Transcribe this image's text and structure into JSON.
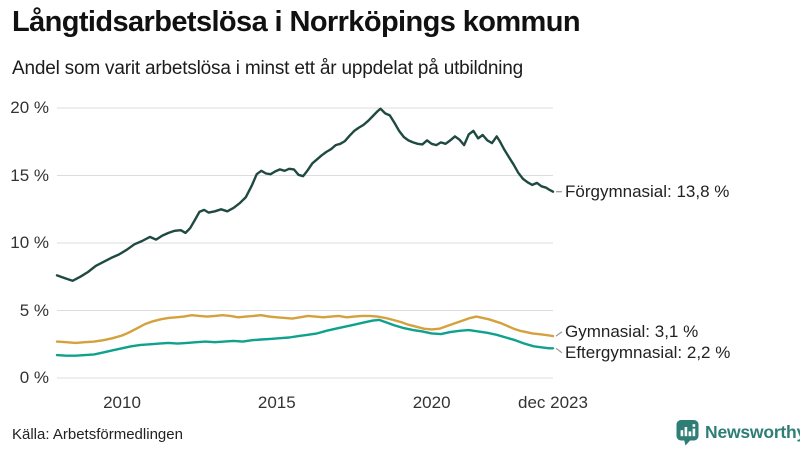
{
  "header": {
    "title": "Långtidsarbetslösa i Norrköpings kommun",
    "subtitle": "Andel som varit arbetslösa i minst ett år uppdelat på utbildning"
  },
  "footer": {
    "source": "Källa: Arbetsförmedlingen",
    "brand_name": "Newsworthy",
    "brand_color": "#2e7e76",
    "brand_icon": "newsworthy-bar-chart-bubble-icon"
  },
  "colors": {
    "grid": "#dcdcdc",
    "axis_text": "#333333",
    "leader_line": "#999999",
    "background": "#ffffff"
  },
  "chart_data": {
    "type": "line",
    "title": "Långtidsarbetslösa i Norrköpings kommun",
    "subtitle": "Andel som varit arbetslösa i minst ett år uppdelat på utbildning",
    "unit": "%",
    "grid": true,
    "legend_position": "right-of-line-ends",
    "xlim": [
      2007.9,
      2023.92
    ],
    "ylim": [
      0,
      20
    ],
    "y_ticks": [
      {
        "value": 0,
        "label": "0 %"
      },
      {
        "value": 5,
        "label": "5 %"
      },
      {
        "value": 10,
        "label": "10 %"
      },
      {
        "value": 15,
        "label": "15 %"
      },
      {
        "value": 20,
        "label": "20 %"
      }
    ],
    "x_ticks": [
      {
        "value": 2010,
        "label": "2010"
      },
      {
        "value": 2015,
        "label": "2015"
      },
      {
        "value": 2020,
        "label": "2020"
      },
      {
        "value": 2023.92,
        "label": "dec 2023"
      }
    ],
    "series": [
      {
        "name": "Förgymnasial",
        "end_label": "Förgymnasial: 13,8 %",
        "end_value_text": "13,8 %",
        "color": "#1f4a41",
        "points": [
          [
            2007.9,
            7.6
          ],
          [
            2008.15,
            7.4
          ],
          [
            2008.4,
            7.2
          ],
          [
            2008.65,
            7.5
          ],
          [
            2008.9,
            7.85
          ],
          [
            2009.15,
            8.3
          ],
          [
            2009.4,
            8.6
          ],
          [
            2009.65,
            8.9
          ],
          [
            2009.9,
            9.15
          ],
          [
            2010.15,
            9.5
          ],
          [
            2010.4,
            9.9
          ],
          [
            2010.65,
            10.15
          ],
          [
            2010.9,
            10.45
          ],
          [
            2011.1,
            10.25
          ],
          [
            2011.3,
            10.55
          ],
          [
            2011.5,
            10.75
          ],
          [
            2011.7,
            10.9
          ],
          [
            2011.9,
            10.95
          ],
          [
            2012.05,
            10.75
          ],
          [
            2012.2,
            11.1
          ],
          [
            2012.35,
            11.7
          ],
          [
            2012.5,
            12.3
          ],
          [
            2012.65,
            12.45
          ],
          [
            2012.8,
            12.25
          ],
          [
            2013.0,
            12.35
          ],
          [
            2013.2,
            12.5
          ],
          [
            2013.4,
            12.35
          ],
          [
            2013.6,
            12.6
          ],
          [
            2013.8,
            12.95
          ],
          [
            2014.0,
            13.4
          ],
          [
            2014.2,
            14.3
          ],
          [
            2014.35,
            15.1
          ],
          [
            2014.5,
            15.35
          ],
          [
            2014.65,
            15.15
          ],
          [
            2014.8,
            15.1
          ],
          [
            2014.95,
            15.3
          ],
          [
            2015.1,
            15.45
          ],
          [
            2015.25,
            15.35
          ],
          [
            2015.4,
            15.5
          ],
          [
            2015.55,
            15.45
          ],
          [
            2015.7,
            15.05
          ],
          [
            2015.85,
            14.95
          ],
          [
            2016.0,
            15.4
          ],
          [
            2016.15,
            15.9
          ],
          [
            2016.3,
            16.2
          ],
          [
            2016.45,
            16.5
          ],
          [
            2016.6,
            16.75
          ],
          [
            2016.75,
            16.95
          ],
          [
            2016.9,
            17.25
          ],
          [
            2017.05,
            17.35
          ],
          [
            2017.2,
            17.55
          ],
          [
            2017.35,
            17.95
          ],
          [
            2017.5,
            18.3
          ],
          [
            2017.65,
            18.55
          ],
          [
            2017.8,
            18.75
          ],
          [
            2017.95,
            19.05
          ],
          [
            2018.1,
            19.4
          ],
          [
            2018.25,
            19.75
          ],
          [
            2018.35,
            19.95
          ],
          [
            2018.5,
            19.6
          ],
          [
            2018.65,
            19.45
          ],
          [
            2018.8,
            18.9
          ],
          [
            2018.95,
            18.3
          ],
          [
            2019.1,
            17.85
          ],
          [
            2019.25,
            17.6
          ],
          [
            2019.4,
            17.45
          ],
          [
            2019.55,
            17.35
          ],
          [
            2019.7,
            17.3
          ],
          [
            2019.85,
            17.6
          ],
          [
            2020.0,
            17.35
          ],
          [
            2020.15,
            17.25
          ],
          [
            2020.3,
            17.45
          ],
          [
            2020.45,
            17.35
          ],
          [
            2020.6,
            17.6
          ],
          [
            2020.75,
            17.9
          ],
          [
            2020.9,
            17.65
          ],
          [
            2021.05,
            17.25
          ],
          [
            2021.2,
            18.05
          ],
          [
            2021.35,
            18.3
          ],
          [
            2021.5,
            17.75
          ],
          [
            2021.65,
            18.0
          ],
          [
            2021.8,
            17.6
          ],
          [
            2021.95,
            17.4
          ],
          [
            2022.1,
            17.9
          ],
          [
            2022.2,
            17.55
          ],
          [
            2022.35,
            16.9
          ],
          [
            2022.5,
            16.35
          ],
          [
            2022.65,
            15.8
          ],
          [
            2022.8,
            15.2
          ],
          [
            2022.95,
            14.75
          ],
          [
            2023.1,
            14.5
          ],
          [
            2023.25,
            14.3
          ],
          [
            2023.4,
            14.45
          ],
          [
            2023.55,
            14.2
          ],
          [
            2023.7,
            14.1
          ],
          [
            2023.8,
            13.95
          ],
          [
            2023.92,
            13.8
          ]
        ]
      },
      {
        "name": "Gymnasial",
        "end_label": "Gymnasial:  3,1 %",
        "end_value_text": "3,1 %",
        "color": "#d4a13c",
        "points": [
          [
            2007.9,
            2.7
          ],
          [
            2008.2,
            2.65
          ],
          [
            2008.5,
            2.6
          ],
          [
            2008.8,
            2.65
          ],
          [
            2009.1,
            2.7
          ],
          [
            2009.4,
            2.8
          ],
          [
            2009.7,
            2.95
          ],
          [
            2010.0,
            3.15
          ],
          [
            2010.25,
            3.4
          ],
          [
            2010.5,
            3.7
          ],
          [
            2010.75,
            4.0
          ],
          [
            2011.0,
            4.2
          ],
          [
            2011.25,
            4.35
          ],
          [
            2011.5,
            4.45
          ],
          [
            2011.75,
            4.5
          ],
          [
            2012.0,
            4.55
          ],
          [
            2012.25,
            4.65
          ],
          [
            2012.5,
            4.6
          ],
          [
            2012.75,
            4.55
          ],
          [
            2013.0,
            4.6
          ],
          [
            2013.25,
            4.65
          ],
          [
            2013.5,
            4.6
          ],
          [
            2013.75,
            4.5
          ],
          [
            2014.0,
            4.55
          ],
          [
            2014.25,
            4.6
          ],
          [
            2014.5,
            4.65
          ],
          [
            2014.75,
            4.55
          ],
          [
            2015.0,
            4.5
          ],
          [
            2015.25,
            4.45
          ],
          [
            2015.5,
            4.4
          ],
          [
            2015.75,
            4.5
          ],
          [
            2016.0,
            4.6
          ],
          [
            2016.25,
            4.55
          ],
          [
            2016.5,
            4.5
          ],
          [
            2016.75,
            4.55
          ],
          [
            2017.0,
            4.6
          ],
          [
            2017.25,
            4.5
          ],
          [
            2017.5,
            4.55
          ],
          [
            2017.75,
            4.6
          ],
          [
            2018.0,
            4.6
          ],
          [
            2018.25,
            4.55
          ],
          [
            2018.5,
            4.45
          ],
          [
            2018.75,
            4.3
          ],
          [
            2019.0,
            4.15
          ],
          [
            2019.25,
            3.95
          ],
          [
            2019.5,
            3.8
          ],
          [
            2019.75,
            3.65
          ],
          [
            2020.0,
            3.6
          ],
          [
            2020.25,
            3.65
          ],
          [
            2020.5,
            3.85
          ],
          [
            2020.75,
            4.05
          ],
          [
            2021.0,
            4.25
          ],
          [
            2021.25,
            4.45
          ],
          [
            2021.45,
            4.55
          ],
          [
            2021.65,
            4.45
          ],
          [
            2021.85,
            4.35
          ],
          [
            2022.05,
            4.2
          ],
          [
            2022.25,
            4.05
          ],
          [
            2022.45,
            3.85
          ],
          [
            2022.65,
            3.65
          ],
          [
            2022.85,
            3.5
          ],
          [
            2023.05,
            3.4
          ],
          [
            2023.25,
            3.3
          ],
          [
            2023.45,
            3.25
          ],
          [
            2023.65,
            3.2
          ],
          [
            2023.8,
            3.15
          ],
          [
            2023.92,
            3.1
          ]
        ]
      },
      {
        "name": "Eftergymnasial",
        "end_label": "Eftergymnasial:  2,2 %",
        "end_value_text": "2,2 %",
        "color": "#0ea28d",
        "points": [
          [
            2007.9,
            1.7
          ],
          [
            2008.2,
            1.65
          ],
          [
            2008.5,
            1.65
          ],
          [
            2008.8,
            1.7
          ],
          [
            2009.1,
            1.75
          ],
          [
            2009.4,
            1.9
          ],
          [
            2009.7,
            2.05
          ],
          [
            2010.0,
            2.2
          ],
          [
            2010.3,
            2.35
          ],
          [
            2010.6,
            2.45
          ],
          [
            2010.9,
            2.5
          ],
          [
            2011.2,
            2.55
          ],
          [
            2011.5,
            2.6
          ],
          [
            2011.8,
            2.55
          ],
          [
            2012.1,
            2.6
          ],
          [
            2012.4,
            2.65
          ],
          [
            2012.7,
            2.7
          ],
          [
            2013.0,
            2.65
          ],
          [
            2013.3,
            2.7
          ],
          [
            2013.6,
            2.75
          ],
          [
            2013.9,
            2.7
          ],
          [
            2014.2,
            2.8
          ],
          [
            2014.5,
            2.85
          ],
          [
            2014.8,
            2.9
          ],
          [
            2015.1,
            2.95
          ],
          [
            2015.4,
            3.0
          ],
          [
            2015.7,
            3.1
          ],
          [
            2016.0,
            3.2
          ],
          [
            2016.3,
            3.3
          ],
          [
            2016.6,
            3.5
          ],
          [
            2016.9,
            3.65
          ],
          [
            2017.2,
            3.8
          ],
          [
            2017.5,
            3.95
          ],
          [
            2017.8,
            4.1
          ],
          [
            2018.1,
            4.25
          ],
          [
            2018.3,
            4.3
          ],
          [
            2018.5,
            4.15
          ],
          [
            2018.8,
            3.9
          ],
          [
            2019.1,
            3.7
          ],
          [
            2019.4,
            3.55
          ],
          [
            2019.7,
            3.45
          ],
          [
            2020.0,
            3.3
          ],
          [
            2020.3,
            3.25
          ],
          [
            2020.6,
            3.4
          ],
          [
            2020.9,
            3.5
          ],
          [
            2021.2,
            3.55
          ],
          [
            2021.5,
            3.45
          ],
          [
            2021.8,
            3.35
          ],
          [
            2022.1,
            3.2
          ],
          [
            2022.4,
            3.0
          ],
          [
            2022.7,
            2.8
          ],
          [
            2023.0,
            2.55
          ],
          [
            2023.3,
            2.35
          ],
          [
            2023.6,
            2.25
          ],
          [
            2023.8,
            2.2
          ],
          [
            2023.92,
            2.2
          ]
        ]
      }
    ]
  }
}
